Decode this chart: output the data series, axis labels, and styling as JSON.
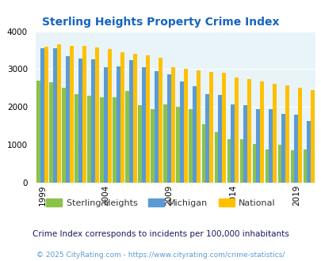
{
  "title": "Sterling Heights Property Crime Index",
  "subtitle": "Crime Index corresponds to incidents per 100,000 inhabitants",
  "footer": "© 2025 CityRating.com - https://www.cityrating.com/crime-statistics/",
  "years": [
    1999,
    2000,
    2001,
    2002,
    2003,
    2004,
    2005,
    2006,
    2007,
    2008,
    2009,
    2010,
    2011,
    2012,
    2013,
    2014,
    2015,
    2016,
    2017,
    2018,
    2019,
    2020
  ],
  "sterling_heights": [
    2700,
    2650,
    2500,
    2350,
    2300,
    2250,
    2250,
    2430,
    2050,
    1950,
    2060,
    2000,
    1950,
    1550,
    1340,
    1140,
    1140,
    1020,
    870,
    1000,
    860,
    870
  ],
  "michigan": [
    3550,
    3550,
    3350,
    3280,
    3260,
    3060,
    3080,
    3230,
    3060,
    2950,
    2870,
    2680,
    2560,
    2350,
    2310,
    2060,
    2050,
    1950,
    1940,
    1820,
    1800,
    1640
  ],
  "national": [
    3600,
    3660,
    3620,
    3620,
    3580,
    3540,
    3450,
    3400,
    3360,
    3310,
    3060,
    3010,
    2960,
    2920,
    2900,
    2770,
    2740,
    2670,
    2620,
    2570,
    2510,
    2440
  ],
  "color_sterling": "#8bc34a",
  "color_michigan": "#5b9bd5",
  "color_national": "#ffc000",
  "bg_color": "#e8f4f8",
  "title_color": "#1565c0",
  "subtitle_color": "#1a1a5e",
  "footer_color": "#5b9bd5",
  "legend_text_color": "#333333",
  "ylim": [
    0,
    4000
  ],
  "yticks": [
    0,
    1000,
    2000,
    3000,
    4000
  ],
  "tick_years": [
    1999,
    2004,
    2009,
    2014,
    2019
  ]
}
